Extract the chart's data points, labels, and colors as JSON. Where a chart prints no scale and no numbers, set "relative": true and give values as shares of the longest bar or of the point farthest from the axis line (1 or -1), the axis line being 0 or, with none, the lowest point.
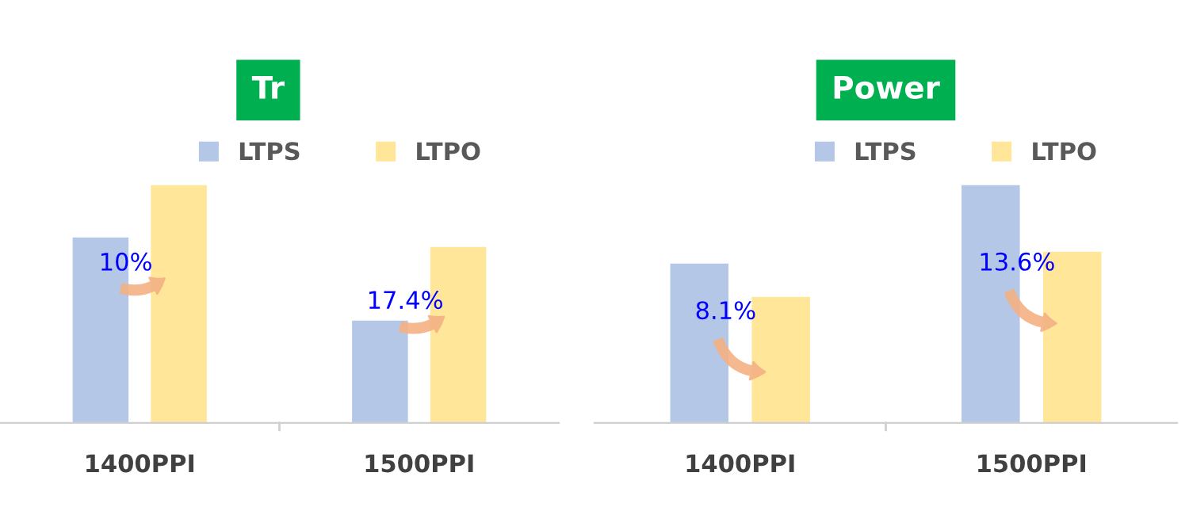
{
  "chart_data": [
    {
      "type": "bar",
      "title": "Tr",
      "relative": true,
      "categories": [
        "1400PPI",
        "1500PPI"
      ],
      "legend": "top right",
      "series": [
        {
          "name": "LTPS",
          "color": "#b4c7e7",
          "values": [
            0.78,
            0.43
          ]
        },
        {
          "name": "LTPO",
          "color": "#ffe699",
          "values": [
            1,
            0.74
          ]
        }
      ],
      "annotations": [
        "10%",
        "17.4%"
      ]
    },
    {
      "type": "bar",
      "title": "Power",
      "relative": true,
      "categories": [
        "1400PPI",
        "1500PPI"
      ],
      "legend": "top right",
      "series": [
        {
          "name": "LTPS",
          "color": "#b4c7e7",
          "values": [
            0.67,
            1
          ]
        },
        {
          "name": "LTPO",
          "color": "#ffe699",
          "values": [
            0.53,
            0.72
          ]
        }
      ],
      "annotations": [
        "8.1%",
        "13.6%"
      ]
    }
  ]
}
